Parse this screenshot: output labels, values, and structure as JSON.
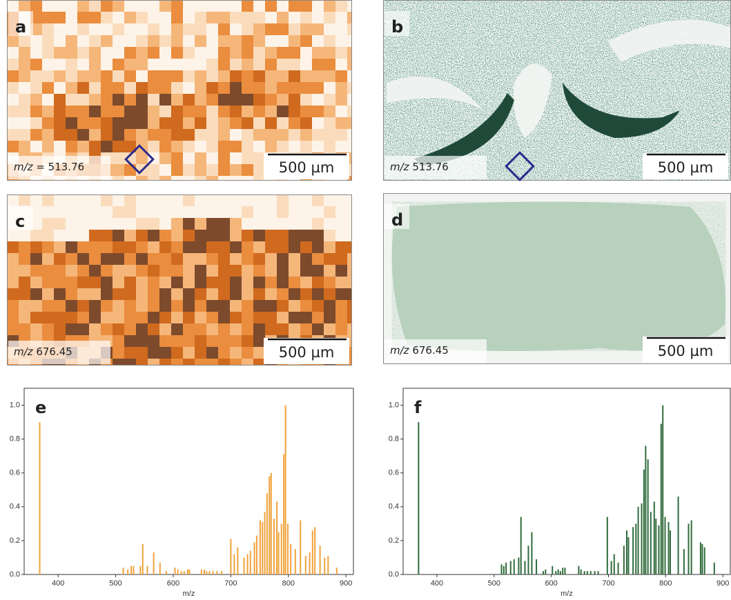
{
  "panels": [
    {
      "label": "a",
      "mz_symbol": "m/z",
      "mz_value": "= 513.76",
      "scale": "500 µm"
    },
    {
      "label": "b",
      "mz_symbol": "m/z",
      "mz_value": "513.76",
      "scale": "500 µm"
    },
    {
      "label": "c",
      "mz_symbol": "m/z",
      "mz_value": "676.45",
      "scale": "500 µm"
    },
    {
      "label": "d",
      "mz_symbol": "m/z",
      "mz_value": "676.45",
      "scale": "500 µm"
    }
  ],
  "chart_data": [
    {
      "type": "bar",
      "panel_label": "e",
      "xlabel": "m/z",
      "color": "#f0a23a",
      "xlim": [
        341,
        913
      ],
      "ylim": [
        0,
        1.1
      ],
      "xticks": [
        400,
        500,
        600,
        700,
        800,
        900
      ],
      "yticks": [
        {
          "value": 0,
          "label": "0.0"
        },
        0.2,
        0.4,
        0.6,
        0.8,
        {
          "value": 1,
          "label": "1.0"
        }
      ],
      "x": [
        368,
        513,
        521,
        527,
        531,
        543,
        547,
        555,
        566,
        577,
        588,
        603,
        608,
        614,
        619,
        625,
        628,
        649,
        654,
        658,
        663,
        669,
        676,
        684,
        700,
        706,
        712,
        723,
        729,
        734,
        741,
        745,
        751,
        755,
        759,
        763,
        767,
        770,
        775,
        780,
        783,
        788,
        792,
        795,
        799,
        804,
        812,
        821,
        830,
        837,
        842,
        846,
        855,
        863,
        869,
        884
      ],
      "values": [
        0.9,
        0.04,
        0.03,
        0.05,
        0.05,
        0.05,
        0.18,
        0.05,
        0.13,
        0.07,
        0.02,
        0.04,
        0.03,
        0.02,
        0.02,
        0.03,
        0.03,
        0.03,
        0.03,
        0.02,
        0.02,
        0.02,
        0.02,
        0.02,
        0.21,
        0.12,
        0.16,
        0.1,
        0.12,
        0.14,
        0.19,
        0.23,
        0.32,
        0.31,
        0.37,
        0.48,
        0.58,
        0.6,
        0.33,
        0.43,
        0.25,
        0.3,
        0.71,
        1.0,
        0.3,
        0.18,
        0.15,
        0.32,
        0.11,
        0.13,
        0.26,
        0.28,
        0.17,
        0.1,
        0.11,
        0.04
      ]
    },
    {
      "type": "bar",
      "panel_label": "f",
      "xlabel": "m/z",
      "color": "#2f6b3c",
      "xlim": [
        341,
        913
      ],
      "ylim": [
        0,
        1.1
      ],
      "xticks": [
        400,
        500,
        600,
        700,
        800,
        900
      ],
      "yticks": [
        {
          "value": 0,
          "label": "0.0"
        },
        0.2,
        0.4,
        0.6,
        0.8,
        {
          "value": 1,
          "label": "1.0"
        }
      ],
      "x": [
        368,
        513,
        517,
        521,
        529,
        535,
        543,
        547,
        554,
        560,
        566,
        574,
        586,
        590,
        602,
        608,
        612,
        616,
        620,
        624,
        648,
        652,
        658,
        663,
        669,
        676,
        682,
        698,
        705,
        710,
        717,
        727,
        732,
        735,
        743,
        748,
        752,
        758,
        762,
        765,
        769,
        774,
        780,
        783,
        788,
        792,
        795,
        799,
        805,
        808,
        822,
        832,
        840,
        845,
        861,
        864,
        868,
        885
      ],
      "values": [
        0.9,
        0.06,
        0.05,
        0.07,
        0.08,
        0.09,
        0.1,
        0.34,
        0.08,
        0.17,
        0.25,
        0.09,
        0.02,
        0.03,
        0.05,
        0.02,
        0.03,
        0.02,
        0.04,
        0.04,
        0.05,
        0.03,
        0.02,
        0.02,
        0.02,
        0.02,
        0.02,
        0.34,
        0.08,
        0.12,
        0.07,
        0.17,
        0.26,
        0.22,
        0.28,
        0.3,
        0.4,
        0.42,
        0.62,
        0.76,
        0.68,
        0.37,
        0.43,
        0.33,
        0.29,
        0.89,
        1.0,
        0.34,
        0.31,
        0.26,
        0.46,
        0.15,
        0.3,
        0.32,
        0.19,
        0.18,
        0.16,
        0.07
      ]
    }
  ]
}
